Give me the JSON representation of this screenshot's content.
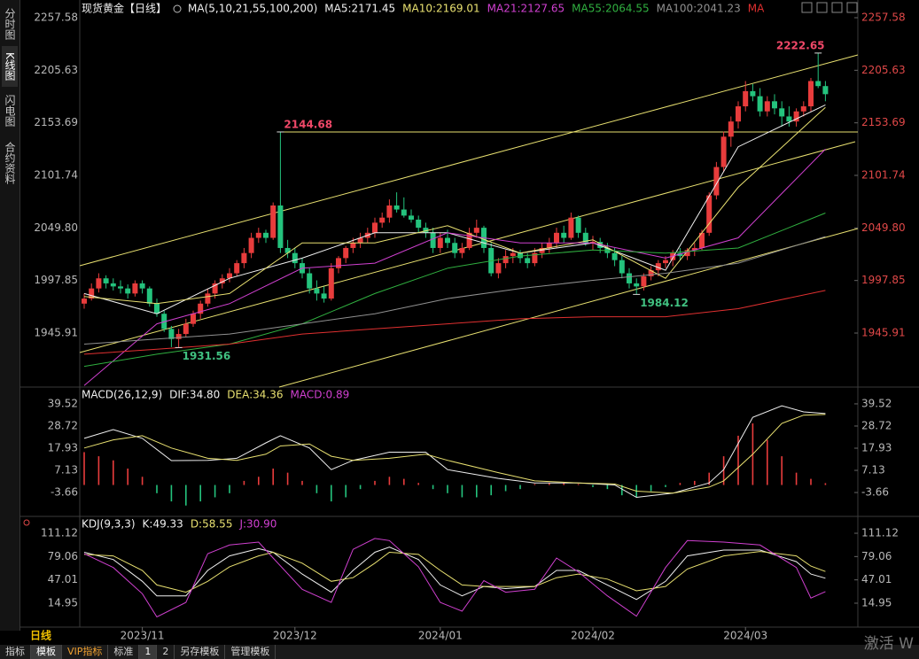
{
  "sidebar": [
    "分时图",
    "K线图",
    "闪电图",
    "合约资料"
  ],
  "period": "日线",
  "tabs": [
    "指标",
    "模板",
    "VIP指标",
    "标准",
    "1",
    "2",
    "另存模板",
    "管理模板"
  ],
  "watermark": "激活 W",
  "chart_data": [
    {
      "type": "candlestick",
      "title": "现货黄金【日线】",
      "indicator": "MA(5,10,21,55,100,200)",
      "up_color": "#e83c3c",
      "down_color": "#24c37d",
      "right_color": "#e04848",
      "ylim": [
        1893.4,
        2266.33
      ],
      "yticks": [
        2257.58,
        2205.63,
        2153.69,
        2101.74,
        {
          "value": 2049.8,
          "label": "2049.80"
        },
        1997.85,
        1945.91
      ],
      "xticks": [
        {
          "value": 8,
          "label": "2023/11"
        },
        {
          "value": 29,
          "label": "2023/12"
        },
        {
          "value": 49,
          "label": "2024/01"
        },
        {
          "value": 70,
          "label": "2024/02"
        },
        {
          "value": 91,
          "label": "2024/03"
        }
      ],
      "open": [
        1975,
        1980,
        1990,
        2000,
        1995,
        1992,
        1990,
        1985,
        1995,
        1990,
        1975,
        1965,
        1950,
        1940,
        1945,
        1955,
        1965,
        1975,
        1985,
        1995,
        2000,
        2005,
        2015,
        2025,
        2040,
        2045,
        2040,
        2072,
        2030,
        2025,
        2015,
        2005,
        1990,
        1985,
        1980,
        2010,
        2020,
        2030,
        2035,
        2040,
        2045,
        2055,
        2060,
        2072,
        2068,
        2062,
        2058,
        2050,
        2045,
        2030,
        2040,
        2035,
        2025,
        2030,
        2045,
        2050,
        2030,
        2005,
        2015,
        2022,
        2025,
        2020,
        2015,
        2025,
        2030,
        2035,
        2045,
        2040,
        2060,
        2045,
        2035,
        2036,
        2030,
        2025,
        2018,
        2005,
        1995,
        1992,
        2002,
        2008,
        2015,
        2018,
        2025,
        2022,
        2028,
        2030,
        2045,
        2082,
        2110,
        2140,
        2155,
        2170,
        2185,
        2180,
        2165,
        2175,
        2168,
        2160,
        2155,
        2165,
        2170,
        2195,
        2190
      ],
      "high": [
        1985,
        1995,
        2005,
        2003,
        2000,
        1998,
        1994,
        1998,
        1998,
        1992,
        1980,
        1968,
        1953,
        1950,
        1960,
        1968,
        1978,
        1990,
        1998,
        2004,
        2010,
        2018,
        2030,
        2045,
        2050,
        2048,
        2075,
        2144.68,
        2038,
        2030,
        2020,
        2010,
        1998,
        1992,
        2015,
        2022,
        2032,
        2040,
        2045,
        2050,
        2060,
        2065,
        2078,
        2085,
        2080,
        2068,
        2062,
        2055,
        2050,
        2045,
        2048,
        2040,
        2035,
        2050,
        2058,
        2052,
        2035,
        2020,
        2028,
        2030,
        2028,
        2025,
        2030,
        2035,
        2040,
        2050,
        2052,
        2065,
        2062,
        2050,
        2042,
        2040,
        2035,
        2030,
        2022,
        2010,
        2000,
        2005,
        2012,
        2018,
        2022,
        2028,
        2030,
        2030,
        2035,
        2048,
        2085,
        2115,
        2145,
        2160,
        2175,
        2195,
        2192,
        2188,
        2180,
        2182,
        2175,
        2170,
        2168,
        2175,
        2198,
        2222.65,
        2195
      ],
      "low": [
        1970,
        1978,
        1986,
        1990,
        1988,
        1985,
        1980,
        1982,
        1985,
        1972,
        1962,
        1947,
        1932,
        1931.56,
        1942,
        1952,
        1960,
        1972,
        1980,
        1990,
        1996,
        2002,
        2010,
        2020,
        2035,
        2035,
        2038,
        2025,
        2020,
        2010,
        2000,
        1985,
        1978,
        1976,
        1978,
        2005,
        2015,
        2025,
        2030,
        2035,
        2040,
        2050,
        2055,
        2065,
        2060,
        2055,
        2045,
        2040,
        2025,
        2025,
        2030,
        2020,
        2020,
        2028,
        2040,
        2025,
        2002,
        2000,
        2010,
        2015,
        2015,
        2010,
        2012,
        2020,
        2025,
        2030,
        2035,
        2038,
        2040,
        2032,
        2028,
        2025,
        2020,
        2012,
        2000,
        1990,
        1984.12,
        1988,
        1998,
        2002,
        2010,
        2012,
        2018,
        2018,
        2022,
        2028,
        2042,
        2078,
        2105,
        2130,
        2148,
        2165,
        2175,
        2160,
        2160,
        2162,
        2150,
        2150,
        2150,
        2160,
        2165,
        2188,
        2175
      ],
      "close": [
        1980,
        1990,
        2000,
        1995,
        1992,
        1990,
        1985,
        1995,
        1990,
        1975,
        1965,
        1950,
        1940,
        1945,
        1955,
        1965,
        1975,
        1985,
        1995,
        2000,
        2005,
        2015,
        2025,
        2040,
        2045,
        2040,
        2072,
        2030,
        2025,
        2015,
        2005,
        1990,
        1985,
        1980,
        2010,
        2020,
        2030,
        2035,
        2040,
        2045,
        2055,
        2060,
        2072,
        2068,
        2062,
        2058,
        2050,
        2045,
        2030,
        2040,
        2035,
        2025,
        2030,
        2045,
        2050,
        2030,
        2005,
        2015,
        2022,
        2025,
        2020,
        2015,
        2025,
        2030,
        2035,
        2045,
        2040,
        2060,
        2045,
        2035,
        2036,
        2030,
        2025,
        2018,
        2005,
        1995,
        1992,
        2002,
        2008,
        2015,
        2018,
        2025,
        2022,
        2028,
        2030,
        2045,
        2082,
        2110,
        2140,
        2155,
        2170,
        2185,
        2180,
        2165,
        2175,
        2168,
        2160,
        2155,
        2165,
        2170,
        2195,
        2190,
        2182
      ],
      "series": [
        {
          "name": "MA5:2171.45",
          "color": "#f0f0f0",
          "x": [
            0,
            10,
            20,
            30,
            40,
            50,
            60,
            70,
            80,
            90,
            102
          ],
          "values": [
            1985,
            1965,
            2000,
            2020,
            2045,
            2045,
            2025,
            2035,
            2008,
            2130,
            2171.45
          ]
        },
        {
          "name": "MA10:2169.01",
          "color": "#e8e070",
          "x": [
            0,
            10,
            20,
            30,
            40,
            50,
            60,
            70,
            80,
            90,
            102
          ],
          "values": [
            1982,
            1975,
            1985,
            2035,
            2035,
            2052,
            2025,
            2038,
            2000,
            2090,
            2169.01
          ]
        },
        {
          "name": "MA21:2127.65",
          "color": "#d040d0",
          "x": [
            0,
            10,
            20,
            30,
            40,
            50,
            60,
            70,
            80,
            90,
            102
          ],
          "values": [
            1894,
            1955,
            1975,
            2010,
            2015,
            2045,
            2035,
            2035,
            2020,
            2040,
            2127.65
          ]
        },
        {
          "name": "MA55:2064.55",
          "color": "#30b040",
          "x": [
            0,
            10,
            20,
            30,
            40,
            50,
            60,
            70,
            80,
            90,
            102
          ],
          "values": [
            1913,
            1925,
            1935,
            1955,
            1985,
            2010,
            2022,
            2028,
            2025,
            2030,
            2064.55
          ]
        },
        {
          "name": "MA100:2041.23",
          "color": "#909090",
          "x": [
            0,
            10,
            20,
            30,
            40,
            50,
            60,
            70,
            80,
            90,
            102
          ],
          "values": [
            1935,
            1940,
            1945,
            1955,
            1965,
            1980,
            1990,
            1998,
            2005,
            2015,
            2041.23
          ]
        },
        {
          "name": "MA",
          "color": "#e03030",
          "x": [
            0,
            10,
            20,
            30,
            40,
            50,
            60,
            70,
            80,
            90,
            102
          ],
          "values": [
            1925,
            1930,
            1935,
            1945,
            1950,
            1955,
            1960,
            1962,
            1962,
            1970,
            1988
          ]
        }
      ],
      "annotations": [
        2222.65,
        2144.68,
        1984.12,
        1931.56
      ],
      "hlines": [
        2144.68
      ]
    },
    {
      "type": "macd",
      "title": "MACD(26,12,9)",
      "up_color": "#e83c3c",
      "down_color": "#24c37d",
      "ylim": [
        -14,
        46.4
      ],
      "yticks": [
        39.52,
        28.72,
        17.93,
        7.13,
        -3.66
      ],
      "series": [
        {
          "name": "DIF:34.80",
          "color": "#f0f0f0",
          "x": [
            0,
            4,
            8,
            12,
            17,
            21,
            25,
            27,
            31,
            34,
            37,
            42,
            47,
            50,
            57,
            62,
            68,
            73,
            76,
            81,
            86,
            88,
            92,
            96,
            99,
            102
          ],
          "values": [
            22.7,
            27,
            22.7,
            11.9,
            12,
            13,
            20.5,
            24,
            18,
            7.5,
            12,
            16,
            16,
            7.5,
            3.2,
            1,
            1,
            0,
            -6,
            -4,
            1,
            7.5,
            33,
            38.6,
            35.6,
            34.8
          ]
        },
        {
          "name": "DEA:34.36",
          "color": "#e8e070",
          "x": [
            0,
            4,
            8,
            12,
            17,
            21,
            25,
            27,
            31,
            34,
            37,
            42,
            47,
            50,
            57,
            62,
            68,
            73,
            76,
            81,
            86,
            88,
            92,
            96,
            99,
            102
          ],
          "values": [
            18,
            22,
            24,
            18,
            13,
            12,
            15,
            19,
            20,
            14,
            12,
            13,
            15,
            12,
            6,
            2,
            1,
            0.5,
            -3,
            -4,
            -1,
            2,
            15,
            30,
            34,
            34.36
          ]
        },
        {
          "name": "MACD:0.89",
          "color": "#d040d0",
          "style": "bar",
          "x": [
            0,
            2,
            4,
            6,
            8,
            10,
            12,
            14,
            16,
            18,
            20,
            22,
            24,
            26,
            28,
            30,
            32,
            34,
            36,
            38,
            40,
            42,
            44,
            46,
            48,
            50,
            52,
            54,
            56,
            58,
            60,
            62,
            64,
            66,
            68,
            70,
            72,
            74,
            76,
            78,
            80,
            82,
            84,
            86,
            88,
            90,
            92,
            94,
            96,
            98,
            100,
            102
          ],
          "values": [
            16,
            14,
            12,
            8,
            4,
            -4,
            -8,
            -10,
            -8,
            -6,
            -4,
            2,
            4,
            8,
            6,
            2,
            -4,
            -8,
            -6,
            -2,
            2,
            4,
            3,
            1,
            -2,
            -4,
            -6,
            -6,
            -5,
            -3,
            -2,
            0.5,
            1,
            1,
            0.5,
            -1,
            -2,
            -5,
            -6,
            -3,
            -1,
            1,
            2,
            6,
            14,
            24,
            30,
            22,
            14,
            6,
            3,
            0.89
          ]
        }
      ]
    },
    {
      "type": "line",
      "title": "KDJ(9,3,3)",
      "ylim": [
        -14.3,
        128.2
      ],
      "yticks": [
        111.12,
        79.06,
        47.01,
        14.95
      ],
      "series": [
        {
          "name": "K:49.33",
          "color": "#f0f0f0",
          "x": [
            0,
            4,
            8,
            10,
            14,
            17,
            20,
            24,
            26,
            30,
            34,
            37,
            40,
            42,
            46,
            49,
            52,
            55,
            58,
            62,
            65,
            68,
            72,
            76,
            80,
            83,
            88,
            93,
            98,
            100,
            102
          ],
          "values": [
            85,
            75,
            45,
            25,
            25,
            60,
            80,
            90,
            85,
            55,
            30,
            60,
            85,
            92,
            75,
            40,
            25,
            38,
            35,
            38,
            60,
            60,
            40,
            20,
            45,
            80,
            88,
            88,
            72,
            55,
            49.33
          ]
        },
        {
          "name": "D:58.55",
          "color": "#e8e070",
          "x": [
            0,
            4,
            8,
            10,
            14,
            17,
            20,
            24,
            26,
            30,
            34,
            37,
            40,
            42,
            46,
            49,
            52,
            55,
            58,
            62,
            65,
            68,
            72,
            76,
            80,
            83,
            88,
            93,
            98,
            100,
            102
          ],
          "values": [
            82,
            80,
            60,
            40,
            30,
            45,
            65,
            80,
            85,
            70,
            45,
            50,
            70,
            85,
            82,
            60,
            40,
            38,
            38,
            38,
            50,
            55,
            48,
            32,
            38,
            62,
            80,
            86,
            80,
            66,
            58.55
          ]
        },
        {
          "name": "J:30.90",
          "color": "#d040d0",
          "x": [
            0,
            4,
            8,
            10,
            14,
            17,
            20,
            24,
            26,
            30,
            34,
            37,
            40,
            42,
            46,
            49,
            52,
            55,
            58,
            62,
            65,
            68,
            72,
            76,
            80,
            83,
            88,
            93,
            98,
            100,
            102
          ],
          "values": [
            83,
            64,
            28,
            -4,
            16,
            83,
            95,
            99,
            77,
            34,
            16,
            89,
            104,
            101,
            65,
            16,
            4,
            46,
            30,
            34,
            77,
            58,
            25,
            -3,
            64,
            101,
            99,
            95,
            64,
            22,
            30.9
          ]
        }
      ]
    }
  ]
}
